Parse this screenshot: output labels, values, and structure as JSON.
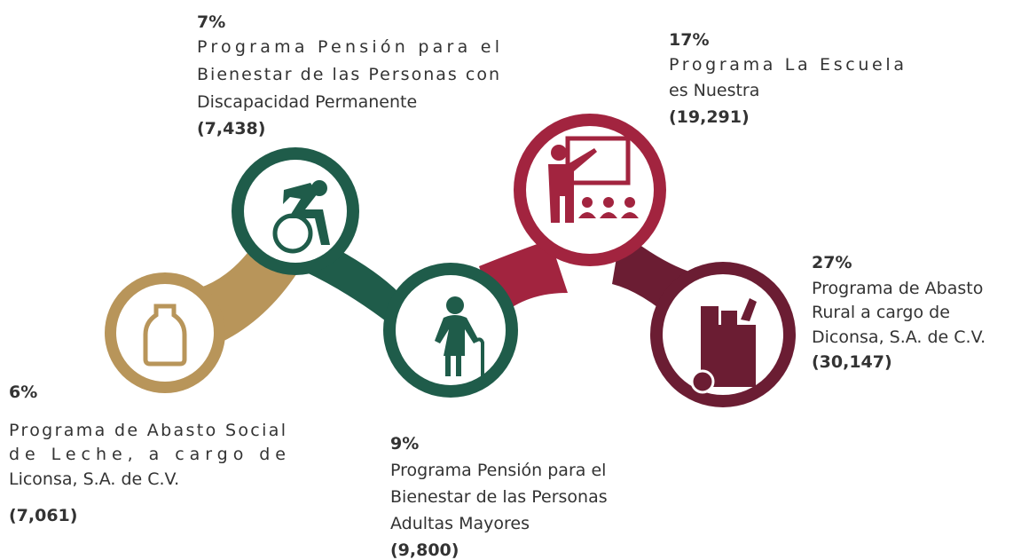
{
  "items": [
    {
      "percent": "6%",
      "label": [
        "Programa de Abasto Social",
        "de Leche, a cargo de",
        "Liconsa, S.A. de C.V."
      ],
      "count": "(7,061)"
    },
    {
      "percent": "7%",
      "label": [
        "Programa Pensión para el",
        "Bienestar de las Personas con",
        "Discapacidad Permanente"
      ],
      "count": "(7,438)"
    },
    {
      "percent": "9%",
      "label": [
        "Programa Pensión para el",
        "Bienestar de las Personas",
        "Adultas Mayores"
      ],
      "count": "(9,800)"
    },
    {
      "percent": "17%",
      "label": [
        "Programa La Escuela",
        "es Nuestra"
      ],
      "count": "(19,291)"
    },
    {
      "percent": "27%",
      "label": [
        "Programa de Abasto",
        "Rural a cargo de",
        "Diconsa, S.A. de C.V."
      ],
      "count": "(30,147)"
    }
  ]
}
